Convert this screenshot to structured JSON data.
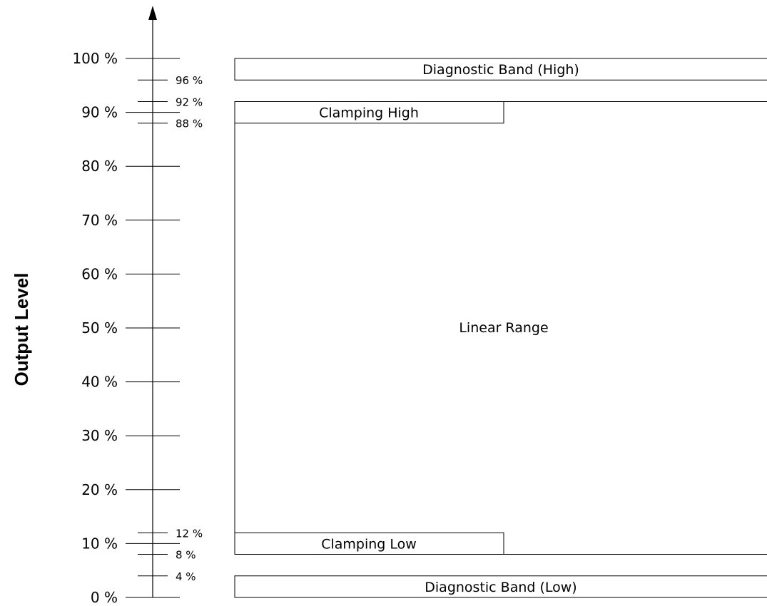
{
  "axis": {
    "title": "Output Level",
    "major_ticks": [
      {
        "value": 0,
        "label": "0 %"
      },
      {
        "value": 10,
        "label": "10 %"
      },
      {
        "value": 20,
        "label": "20 %"
      },
      {
        "value": 30,
        "label": "30 %"
      },
      {
        "value": 40,
        "label": "40 %"
      },
      {
        "value": 50,
        "label": "50 %"
      },
      {
        "value": 60,
        "label": "60 %"
      },
      {
        "value": 70,
        "label": "70 %"
      },
      {
        "value": 80,
        "label": "80 %"
      },
      {
        "value": 90,
        "label": "90 %"
      },
      {
        "value": 100,
        "label": "100 %"
      }
    ],
    "minor_ticks": [
      {
        "value": 4,
        "label": "4 %"
      },
      {
        "value": 8,
        "label": "8 %"
      },
      {
        "value": 12,
        "label": "12 %"
      },
      {
        "value": 88,
        "label": "88 %"
      },
      {
        "value": 92,
        "label": "92 %"
      },
      {
        "value": 96,
        "label": "96 %"
      }
    ]
  },
  "bands": {
    "diagnostic_high": {
      "label": "Diagnostic Band (High)",
      "from": 96,
      "to": 100
    },
    "clamping_high": {
      "label": "Clamping High",
      "from": 88,
      "to": 92
    },
    "linear_range": {
      "label": "Linear Range",
      "from": 8,
      "to": 92
    },
    "clamping_low": {
      "label": "Clamping Low",
      "from": 8,
      "to": 12
    },
    "diagnostic_low": {
      "label": "Diagnostic Band (Low)",
      "from": 0,
      "to": 4
    }
  }
}
